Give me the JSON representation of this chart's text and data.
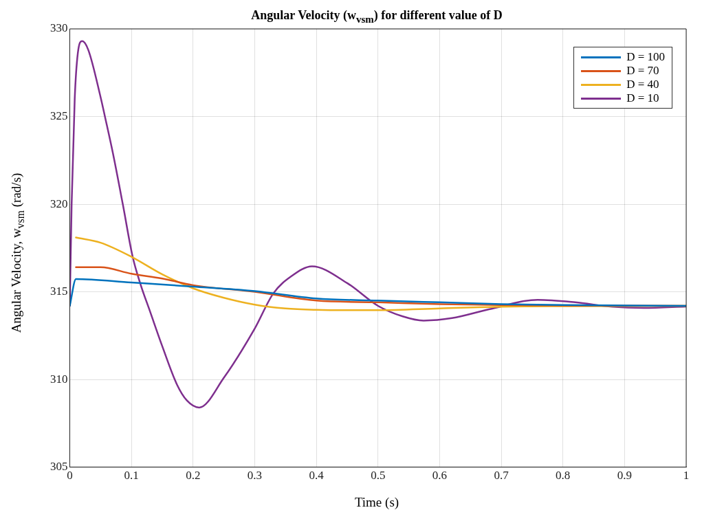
{
  "chart_data": {
    "type": "line",
    "title": "Angular Velocity (w$_{vsm}$) for different value of D",
    "xlabel": "Time (s)",
    "ylabel": "Angular Velocity, w$_{vsm}$ (rad/s)",
    "xlim": [
      0,
      1
    ],
    "xticks": [
      0,
      0.1,
      0.2,
      0.3,
      0.4,
      0.5,
      0.6,
      0.7,
      0.8,
      0.9,
      1
    ],
    "ylim": [
      305,
      330
    ],
    "yticks": [
      305,
      310,
      315,
      320,
      325,
      330
    ],
    "grid": true,
    "legend": "top right",
    "marker": "none",
    "line_style": "solid",
    "series": [
      {
        "name": "D = 100",
        "color": "#0072bd",
        "x": [
          0,
          0.01,
          0.1,
          0.2,
          0.3,
          0.4,
          0.5,
          0.6,
          0.7,
          0.8,
          0.9,
          1
        ],
        "values": [
          314.2,
          315.73,
          315.53,
          315.3,
          315.04,
          314.62,
          314.5,
          314.4,
          314.3,
          314.25,
          314.22,
          314.2
        ]
      },
      {
        "name": "D = 70",
        "color": "#d95319",
        "x": [
          0.01,
          0.05,
          0.1,
          0.15,
          0.2,
          0.3,
          0.4,
          0.5,
          0.6,
          0.7,
          0.8,
          1
        ],
        "values": [
          316.4,
          316.4,
          316.03,
          315.76,
          315.38,
          315.0,
          314.5,
          314.4,
          314.3,
          314.25,
          314.22,
          314.2
        ]
      },
      {
        "name": "D = 40",
        "color": "#edb120",
        "x": [
          0.01,
          0.05,
          0.1,
          0.15,
          0.2,
          0.25,
          0.3,
          0.35,
          0.4,
          0.45,
          0.5,
          0.6,
          0.7,
          0.8,
          1
        ],
        "values": [
          318.1,
          317.8,
          317.0,
          316.0,
          315.2,
          314.66,
          314.27,
          314.05,
          313.97,
          313.95,
          313.95,
          314.05,
          314.15,
          314.18,
          314.2
        ]
      },
      {
        "name": "D = 10",
        "color": "#7e2f8e",
        "x": [
          0,
          0.003,
          0.008,
          0.013,
          0.02,
          0.03,
          0.05,
          0.057,
          0.07,
          0.086,
          0.102,
          0.115,
          0.13,
          0.15,
          0.174,
          0.19,
          0.21,
          0.25,
          0.3,
          0.33,
          0.36,
          0.393,
          0.45,
          0.5,
          0.54,
          0.574,
          0.62,
          0.68,
          0.759,
          0.82,
          0.88,
          0.931,
          1
        ],
        "values": [
          314.2,
          320,
          326,
          328.6,
          329.3,
          328.8,
          326.1,
          325,
          322.9,
          320,
          317,
          315.4,
          313.9,
          311.9,
          309.7,
          308.8,
          308.4,
          310.1,
          312.9,
          314.9,
          315.9,
          316.45,
          315.5,
          314.2,
          313.6,
          313.36,
          313.5,
          314.0,
          314.54,
          314.4,
          314.15,
          314.08,
          314.16
        ]
      }
    ]
  }
}
